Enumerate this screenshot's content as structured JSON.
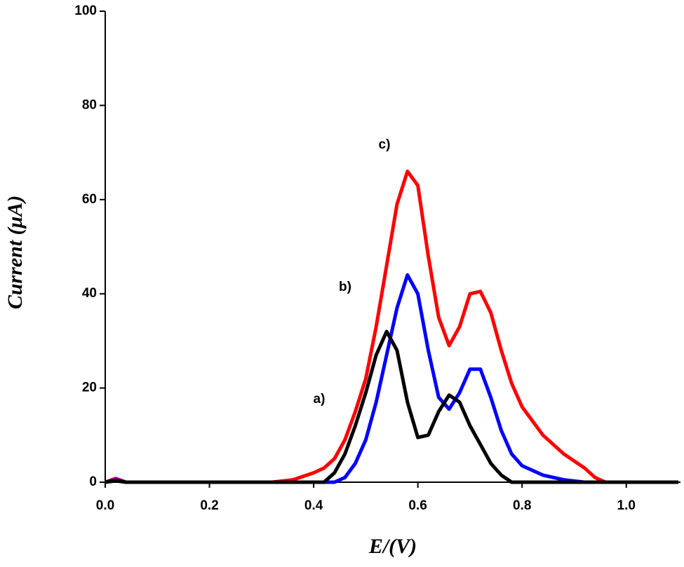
{
  "chart_data": {
    "type": "line",
    "x_label": "E/(V)",
    "y_label": "Current (μA)",
    "x": [
      0,
      0.02,
      0.04,
      0.2,
      0.32,
      0.36,
      0.4,
      0.42,
      0.44,
      0.46,
      0.48,
      0.5,
      0.52,
      0.54,
      0.56,
      0.58,
      0.6,
      0.62,
      0.64,
      0.66,
      0.68,
      0.7,
      0.72,
      0.74,
      0.76,
      0.78,
      0.8,
      0.84,
      0.88,
      0.92,
      0.94,
      0.96,
      1.0,
      1.1
    ],
    "series": [
      {
        "name": "c)",
        "color": "#ff0000",
        "values": [
          0,
          0.8,
          0,
          0,
          0,
          0.5,
          2,
          3,
          5,
          9,
          15,
          22,
          33,
          46,
          59,
          66,
          63,
          48,
          35,
          29,
          33,
          40,
          40.5,
          36,
          28,
          21,
          16,
          10,
          6,
          3,
          1,
          0,
          0,
          0
        ]
      },
      {
        "name": "b)",
        "color": "#0000ff",
        "values": [
          0,
          0.5,
          0,
          0,
          0,
          0,
          0,
          0,
          0,
          1,
          4,
          9,
          17,
          27,
          37,
          44,
          40,
          28,
          18,
          15.5,
          19,
          24,
          24,
          18,
          11,
          6,
          3.5,
          1.5,
          0.5,
          0,
          0,
          0,
          0,
          0
        ]
      },
      {
        "name": "a)",
        "color": "#000000",
        "values": [
          0,
          0.3,
          0,
          0,
          0,
          0,
          0,
          0,
          2,
          6,
          12,
          19,
          27,
          32,
          28,
          17,
          9.5,
          10,
          15,
          18.5,
          17,
          12,
          8,
          4,
          1.5,
          0,
          0,
          0,
          0,
          0,
          0,
          0,
          0,
          0
        ]
      }
    ],
    "xlim": [
      0,
      1.1
    ],
    "xticks": [
      {
        "value": 0,
        "label": "0.0"
      },
      {
        "value": 0.2,
        "label": "0.2"
      },
      {
        "value": 0.4,
        "label": "0.4"
      },
      {
        "value": 0.6,
        "label": "0.6"
      },
      {
        "value": 0.8,
        "label": "0.8"
      },
      {
        "value": 1,
        "label": "1.0"
      }
    ],
    "ylim": [
      0,
      100
    ],
    "yticks": [
      0,
      20,
      40,
      60,
      80,
      100
    ],
    "grid": false
  }
}
